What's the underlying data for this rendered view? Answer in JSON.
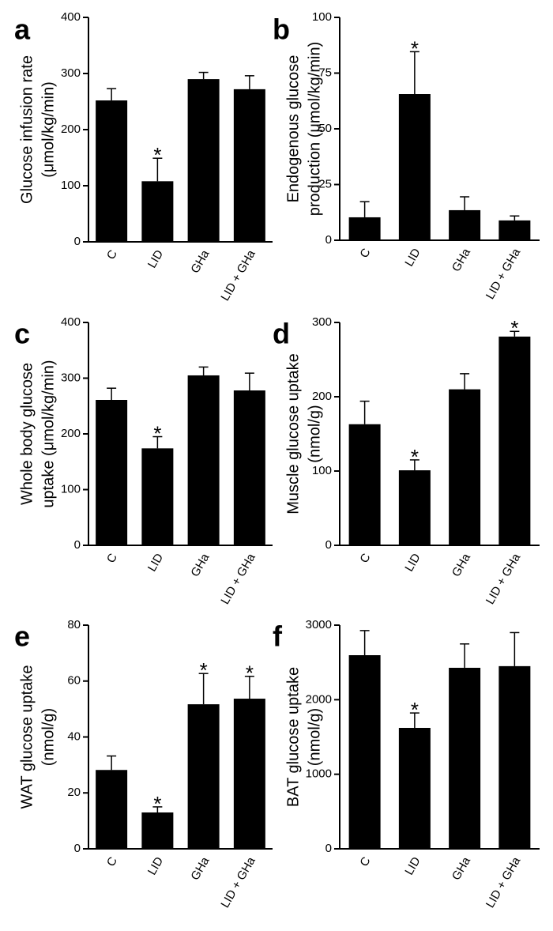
{
  "chart_data": [
    {
      "type": "bar",
      "panel": "a",
      "ylabel": [
        "Glucose infusion rate",
        "(μmol/kg/min)"
      ],
      "categories": [
        "C",
        "LID",
        "GHa",
        "LID + GHa"
      ],
      "values": [
        252,
        108,
        290,
        272
      ],
      "errors": [
        21,
        41,
        12,
        24
      ],
      "significant": [
        false,
        true,
        false,
        false
      ],
      "marker": "*",
      "color": "#000000",
      "ylim": [
        0,
        400
      ],
      "yticks": [
        0,
        100,
        200,
        300,
        400
      ]
    },
    {
      "type": "bar",
      "panel": "b",
      "ylabel": [
        "Endogenous glucose",
        "production (μmol/kg/min)"
      ],
      "categories": [
        "C",
        "LID",
        "GHa",
        "LID + GHa"
      ],
      "values": [
        10.3,
        65.6,
        13.5,
        8.9
      ],
      "errors": [
        7,
        19,
        6,
        2
      ],
      "significant": [
        false,
        true,
        false,
        false
      ],
      "marker": "*",
      "color": "#000000",
      "ylim": [
        0,
        100
      ],
      "yticks": [
        0,
        25,
        50,
        75,
        100
      ]
    },
    {
      "type": "bar",
      "panel": "c",
      "ylabel": [
        "Whole body glucose",
        "uptake (μmol/kg/min)"
      ],
      "categories": [
        "C",
        "LID",
        "GHa",
        "LID + GHa"
      ],
      "values": [
        261,
        174,
        305,
        278
      ],
      "errors": [
        21,
        21,
        15,
        31
      ],
      "significant": [
        false,
        true,
        false,
        false
      ],
      "marker": "*",
      "color": "#000000",
      "ylim": [
        0,
        400
      ],
      "yticks": [
        0,
        100,
        200,
        300,
        400
      ]
    },
    {
      "type": "bar",
      "panel": "d",
      "ylabel": [
        "Muscle glucose uptake",
        "(nmol/g)"
      ],
      "categories": [
        "C",
        "LID",
        "GHa",
        "LID + GHa"
      ],
      "values": [
        163,
        101,
        210,
        281
      ],
      "errors": [
        31,
        14,
        21,
        7
      ],
      "significant": [
        false,
        true,
        false,
        true
      ],
      "marker": "*",
      "color": "#000000",
      "ylim": [
        0,
        300
      ],
      "yticks": [
        0,
        100,
        200,
        300
      ]
    },
    {
      "type": "bar",
      "panel": "e",
      "ylabel": [
        "WAT glucose uptake",
        "(nmol/g)"
      ],
      "categories": [
        "C",
        "LID",
        "GHa",
        "LID + GHa"
      ],
      "values": [
        28.2,
        13,
        51.7,
        53.7
      ],
      "errors": [
        5,
        2,
        11,
        8
      ],
      "significant": [
        false,
        true,
        true,
        true
      ],
      "marker": "*",
      "color": "#000000",
      "ylim": [
        0,
        80
      ],
      "yticks": [
        0,
        20,
        40,
        60,
        80
      ]
    },
    {
      "type": "bar",
      "panel": "f",
      "ylabel": [
        "BAT glucose uptake",
        "(nmol/g)"
      ],
      "categories": [
        "C",
        "LID",
        "GHa",
        "LID + GHa"
      ],
      "values": [
        2597,
        1622,
        2428,
        2450
      ],
      "errors": [
        330,
        200,
        320,
        450
      ],
      "significant": [
        false,
        true,
        false,
        false
      ],
      "marker": "*",
      "color": "#000000",
      "ylim": [
        0,
        3000
      ],
      "yticks": [
        0,
        1000,
        2000,
        3000
      ]
    }
  ]
}
